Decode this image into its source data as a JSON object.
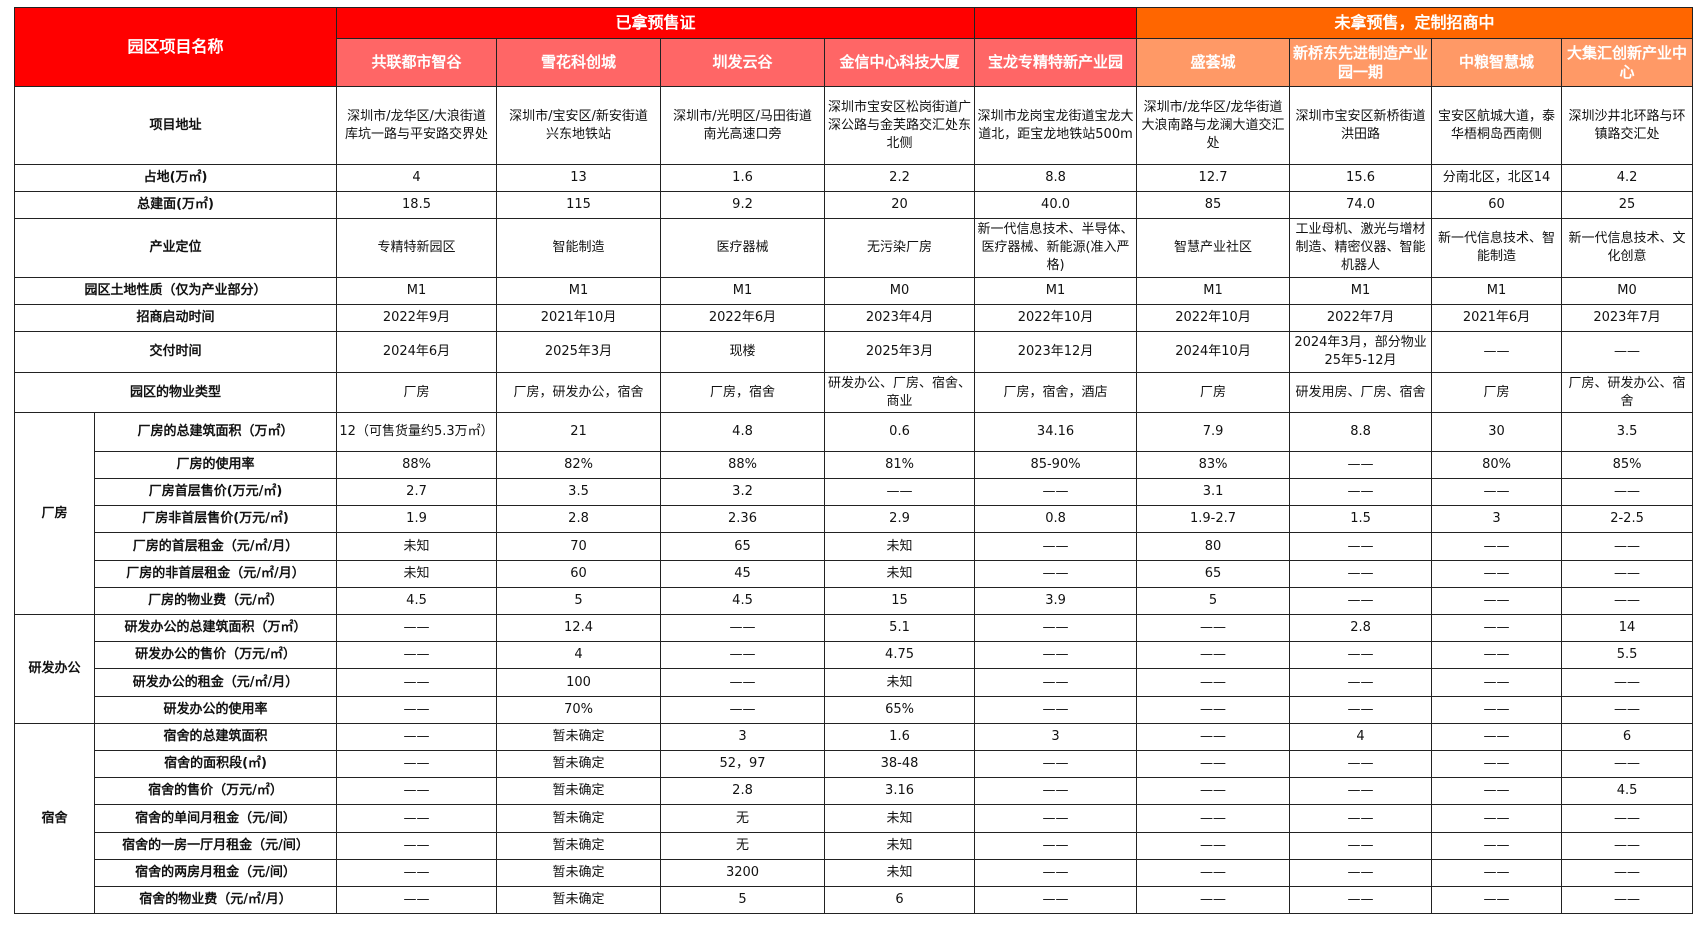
{
  "header": {
    "corner": "园区项目名称",
    "group_presale": "已拿预售证",
    "group_no_presale": "未拿预售，定制招商中",
    "projects": [
      "共联都市智谷",
      "雪花科创城",
      "圳发云谷",
      "金信中心科技大厦",
      "宝龙专精特新产业园",
      "盛荟城",
      "新桥东先进制造产业园一期",
      "中粮智慧城",
      "大集汇创新产业中心"
    ]
  },
  "colors": {
    "red": "#ff0000",
    "light_red": "#ff6666",
    "orange": "#ff6600",
    "light_orange": "#ff9966"
  },
  "groups": {
    "factory": "厂房",
    "rd": "研发办公",
    "dorm": "宿舍"
  },
  "rows": [
    {
      "label": "项目地址",
      "group": null,
      "values": [
        "深圳市/龙华区/大浪街道\n库坑一路与平安路交界处",
        "深圳市/宝安区/新安街道\n兴东地铁站",
        "深圳市/光明区/马田街道\n南光高速口旁",
        "深圳市宝安区松岗街道广深公路与金芙路交汇处东北侧",
        "深圳市龙岗宝龙街道宝龙大道北，距宝龙地铁站500m",
        "深圳市/龙华区/龙华街道\n大浪南路与龙澜大道交汇处",
        "深圳市宝安区新桥街道洪田路",
        "宝安区航城大道，泰华梧桐岛西南侧",
        "深圳沙井北环路与环镇路交汇处"
      ]
    },
    {
      "label": "占地(万㎡)",
      "group": null,
      "values": [
        "4",
        "13",
        "1.6",
        "2.2",
        "8.8",
        "12.7",
        "15.6",
        "分南北区，北区14",
        "4.2"
      ]
    },
    {
      "label": "总建面(万㎡)",
      "group": null,
      "values": [
        "18.5",
        "115",
        "9.2",
        "20",
        "40.0",
        "85",
        "74.0",
        "60",
        "25"
      ]
    },
    {
      "label": "产业定位",
      "group": null,
      "values": [
        "专精特新园区",
        "智能制造",
        "医疗器械",
        "无污染厂房",
        "新一代信息技术、半导体、医疗器械、新能源(准入严格)",
        "智慧产业社区",
        "工业母机、激光与增材制造、精密仪器、智能机器人",
        "新一代信息技术、智能制造",
        "新一代信息技术、文化创意"
      ]
    },
    {
      "label": "园区土地性质（仅为产业部分）",
      "group": null,
      "values": [
        "M1",
        "M1",
        "M1",
        "M0",
        "M1",
        "M1",
        "M1",
        "M1",
        "M0"
      ]
    },
    {
      "label": "招商启动时间",
      "group": null,
      "values": [
        "2022年9月",
        "2021年10月",
        "2022年6月",
        "2023年4月",
        "2022年10月",
        "2022年10月",
        "2022年7月",
        "2021年6月",
        "2023年7月"
      ]
    },
    {
      "label": "交付时间",
      "group": null,
      "values": [
        "2024年6月",
        "2025年3月",
        "现楼",
        "2025年3月",
        "2023年12月",
        "2024年10月",
        "2024年3月，部分物业25年5-12月",
        "——",
        "——"
      ]
    },
    {
      "label": "园区的物业类型",
      "group": null,
      "values": [
        "厂房",
        "厂房，研发办公，宿舍",
        "厂房，宿舍",
        "研发办公、厂房、宿舍、商业",
        "厂房，宿舍，酒店",
        "厂房",
        "研发用房、厂房、宿舍",
        "厂房",
        "厂房、研发办公、宿舍"
      ]
    },
    {
      "label": "厂房的总建筑面积（万㎡）",
      "group": "factory",
      "values": [
        "12（可售货量约5.3万㎡）",
        "21",
        "4.8",
        "0.6",
        "34.16",
        "7.9",
        "8.8",
        "30",
        "3.5"
      ]
    },
    {
      "label": "厂房的使用率",
      "group": "factory",
      "values": [
        "88%",
        "82%",
        "88%",
        "81%",
        "85-90%",
        "83%",
        "——",
        "80%",
        "85%"
      ]
    },
    {
      "label": "厂房首层售价(万元/㎡)",
      "group": "factory",
      "values": [
        "2.7",
        "3.5",
        "3.2",
        "——",
        "——",
        "3.1",
        "——",
        "——",
        "——"
      ]
    },
    {
      "label": "厂房非首层售价(万元/㎡)",
      "group": "factory",
      "values": [
        "1.9",
        "2.8",
        "2.36",
        "2.9",
        "0.8",
        "1.9-2.7",
        "1.5",
        "3",
        "2-2.5"
      ]
    },
    {
      "label": "厂房的首层租金（元/㎡/月）",
      "group": "factory",
      "values": [
        "未知",
        "70",
        "65",
        "未知",
        "——",
        "80",
        "——",
        "——",
        "——"
      ]
    },
    {
      "label": "厂房的非首层租金（元/㎡/月）",
      "group": "factory",
      "values": [
        "未知",
        "60",
        "45",
        "未知",
        "——",
        "65",
        "——",
        "——",
        "——"
      ]
    },
    {
      "label": "厂房的物业费（元/㎡）",
      "group": "factory",
      "values": [
        "4.5",
        "5",
        "4.5",
        "15",
        "3.9",
        "5",
        "——",
        "——",
        "——"
      ]
    },
    {
      "label": "研发办公的总建筑面积（万㎡）",
      "group": "rd",
      "values": [
        "——",
        "12.4",
        "——",
        "5.1",
        "——",
        "——",
        "2.8",
        "——",
        "14"
      ]
    },
    {
      "label": "研发办公的售价（万元/㎡）",
      "group": "rd",
      "values": [
        "——",
        "4",
        "——",
        "4.75",
        "——",
        "——",
        "——",
        "——",
        "5.5"
      ]
    },
    {
      "label": "研发办公的租金（元/㎡/月）",
      "group": "rd",
      "values": [
        "——",
        "100",
        "——",
        "未知",
        "——",
        "——",
        "——",
        "——",
        "——"
      ]
    },
    {
      "label": "研发办公的使用率",
      "group": "rd",
      "values": [
        "——",
        "70%",
        "——",
        "65%",
        "——",
        "——",
        "——",
        "——",
        "——"
      ]
    },
    {
      "label": "宿舍的总建筑面积",
      "group": "dorm",
      "values": [
        "——",
        "暂未确定",
        "3",
        "1.6",
        "3",
        "——",
        "4",
        "——",
        "6"
      ]
    },
    {
      "label": "宿舍的面积段(㎡)",
      "group": "dorm",
      "values": [
        "——",
        "暂未确定",
        "52，97",
        "38-48",
        "——",
        "——",
        "——",
        "——",
        "——"
      ]
    },
    {
      "label": "宿舍的售价（万元/㎡）",
      "group": "dorm",
      "values": [
        "——",
        "暂未确定",
        "2.8",
        "3.16",
        "——",
        "——",
        "——",
        "——",
        "4.5"
      ]
    },
    {
      "label": "宿舍的单间月租金（元/间）",
      "group": "dorm",
      "values": [
        "——",
        "暂未确定",
        "无",
        "未知",
        "——",
        "——",
        "——",
        "——",
        "——"
      ]
    },
    {
      "label": "宿舍的一房一厅月租金（元/间）",
      "group": "dorm",
      "values": [
        "——",
        "暂未确定",
        "无",
        "未知",
        "——",
        "——",
        "——",
        "——",
        "——"
      ]
    },
    {
      "label": "宿舍的两房月租金（元/间）",
      "group": "dorm",
      "values": [
        "——",
        "暂未确定",
        "3200",
        "未知",
        "——",
        "——",
        "——",
        "——",
        "——"
      ]
    },
    {
      "label": "宿舍的物业费（元/㎡/月）",
      "group": "dorm",
      "values": [
        "——",
        "暂未确定",
        "5",
        "6",
        "——",
        "——",
        "——",
        "——",
        "——"
      ]
    }
  ]
}
